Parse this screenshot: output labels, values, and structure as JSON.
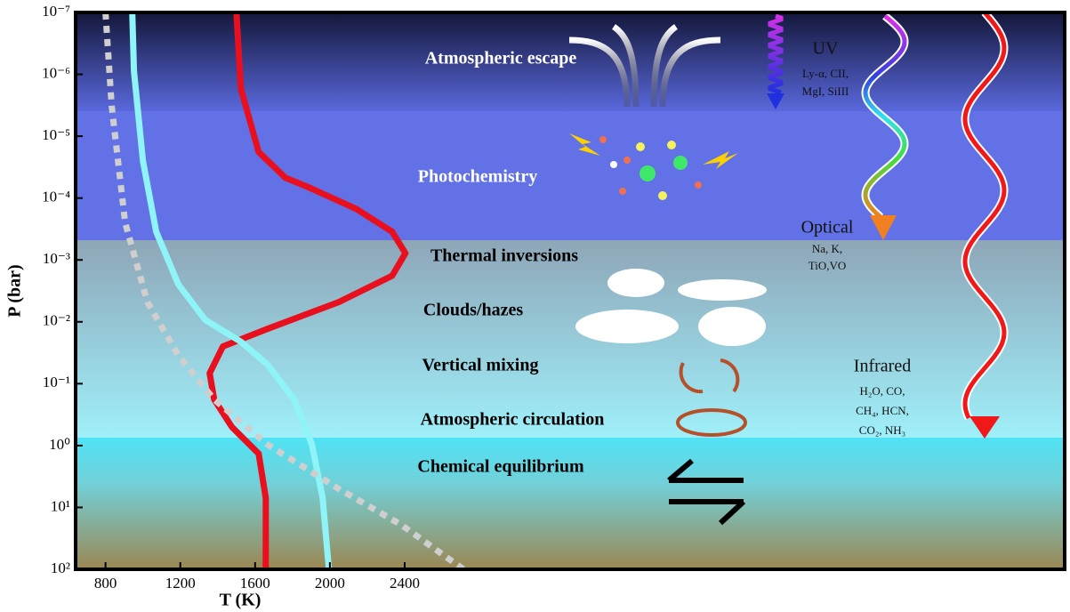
{
  "chart_data": {
    "type": "line",
    "xlabel": "T (K)",
    "ylabel": "P (bar)",
    "xlim": [
      640,
      5930
    ],
    "ylim": [
      1e-07,
      100
    ],
    "ylog": true,
    "xticks": [
      800,
      1200,
      1600,
      2000,
      2400
    ],
    "yticks": [
      {
        "value": 1e-07,
        "label": "10⁻⁷"
      },
      {
        "value": 1e-06,
        "label": "10⁻⁶"
      },
      {
        "value": 1e-05,
        "label": "10⁻⁵"
      },
      {
        "value": 0.0001,
        "label": "10⁻⁴"
      },
      {
        "value": 0.001,
        "label": "10⁻³"
      },
      {
        "value": 0.01,
        "label": "10⁻²"
      },
      {
        "value": 0.1,
        "label": "10⁻¹"
      },
      {
        "value": 1,
        "label": "10⁰"
      },
      {
        "value": 10,
        "label": "10¹"
      },
      {
        "value": 100,
        "label": "10²"
      }
    ],
    "series": [
      {
        "color": "#e8101f",
        "dash": false,
        "x": [
          1500,
          1524,
          1619,
          1762,
          1881,
          2142,
          2333,
          2404,
          2333,
          2047,
          1666,
          1428,
          1357,
          1381,
          1476,
          1619,
          1657,
          1657
        ],
        "values": [
          1e-07,
          1.7e-06,
          1.8e-05,
          4.7e-05,
          6.6e-05,
          0.00015,
          0.00035,
          0.00078,
          0.0018,
          0.0048,
          0.013,
          0.025,
          0.068,
          0.18,
          0.5,
          1.35,
          7,
          100
        ]
      },
      {
        "color": "#8ef4f8",
        "dash": false,
        "x": [
          943,
          952,
          1000,
          1071,
          1190,
          1333,
          1524,
          1666,
          1809,
          1904,
          1961,
          1995
        ],
        "values": [
          1e-07,
          8.9e-07,
          2.5e-05,
          0.00035,
          0.0025,
          0.0093,
          0.021,
          0.049,
          0.18,
          0.96,
          7,
          100
        ]
      },
      {
        "color": "#cfcfcf",
        "dash": true,
        "x": [
          800,
          833,
          905,
          1024,
          1190,
          1381,
          1666,
          2047,
          2380,
          2714
        ],
        "values": [
          1e-07,
          3.3e-06,
          0.00025,
          0.0048,
          0.035,
          0.18,
          0.96,
          5,
          19,
          100
        ]
      }
    ],
    "annotations": {
      "layers": [
        "Atmospheric escape",
        "Photochemistry",
        "Thermal inversions",
        "Clouds/hazes",
        "Vertical mixing",
        "Atmospheric circulation",
        "Chemical equilibrium"
      ],
      "uv": [
        "UV",
        "Ly-α, CII,",
        "MgI, SiIII"
      ],
      "optical": [
        "Optical",
        "Na, K,",
        "TiO,VO"
      ],
      "infrared": [
        "Infrared",
        "H₂O, CO,",
        "CH₄, HCN,",
        "CO₂, NH₃"
      ]
    }
  }
}
